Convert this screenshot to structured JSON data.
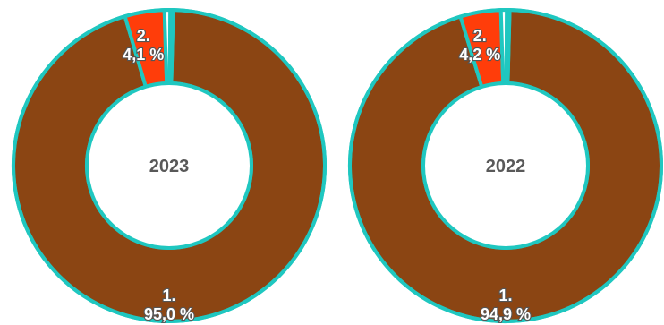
{
  "chart_data": [
    {
      "type": "pie",
      "title": "2023",
      "slices": [
        {
          "label_rank": "1.",
          "label_value": "95,0 %",
          "value": 95.0,
          "color": "#8B4513"
        },
        {
          "label_rank": "2.",
          "label_value": "4,1 %",
          "value": 4.1,
          "color": "#FF3D0A"
        },
        {
          "label_rank": "",
          "label_value": "",
          "value": 0.6,
          "color": "#FFFFFF"
        },
        {
          "label_rank": "",
          "label_value": "",
          "value": 0.3,
          "color": "#FFFFFF"
        }
      ]
    },
    {
      "type": "pie",
      "title": "2022",
      "slices": [
        {
          "label_rank": "1.",
          "label_value": "94,9 %",
          "value": 94.9,
          "color": "#8B4513"
        },
        {
          "label_rank": "2.",
          "label_value": "4,2 %",
          "value": 4.2,
          "color": "#FF3D0A"
        },
        {
          "label_rank": "",
          "label_value": "",
          "value": 0.6,
          "color": "#FFFFFF"
        },
        {
          "label_rank": "",
          "label_value": "",
          "value": 0.3,
          "color": "#FFFFFF"
        }
      ]
    }
  ],
  "style": {
    "outline_color": "#1FC7C0"
  }
}
